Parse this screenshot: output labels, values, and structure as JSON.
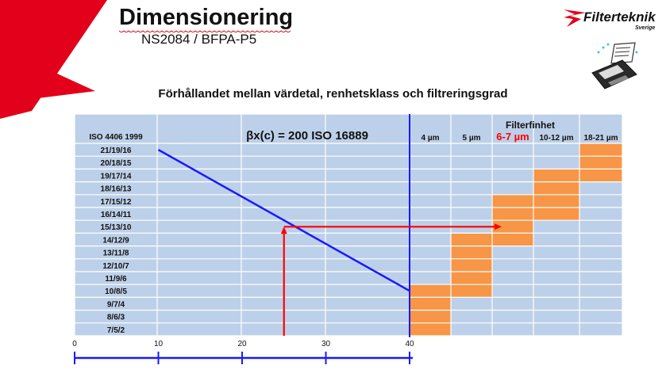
{
  "title": "Dimensionering",
  "subtitle": "NS2084 / BFPA-P5",
  "logo": {
    "text": "Filterteknik",
    "subtext": "Sverige"
  },
  "icon": "calculator-printer-icon",
  "colors": {
    "grid_fill": "#bdd0e9",
    "orange": "#f79646",
    "blue_line": "#1a1aff",
    "red": "#ff0000",
    "brand_red": "#e2001a"
  },
  "chart_data": {
    "type": "table",
    "title": "Förhållandet mellan värdetal, renhetsklass och filtreringsgrad",
    "row_header": "ISO 4406 1999",
    "codes": [
      "21/19/16",
      "20/18/15",
      "19/17/14",
      "18/16/13",
      "17/15/12",
      "16/14/11",
      "15/13/10",
      "14/12/9",
      "13/11/8",
      "12/10/7",
      "11/9/6",
      "10/8/5",
      "9/7/4",
      "8/6/3",
      "7/5/2"
    ],
    "beta_label": "βx(c) = 200   ISO 16889",
    "filter_header": "Filterfinhet",
    "filter_columns": [
      {
        "label": "4 µm",
        "rows": [
          11,
          14
        ],
        "highlight": false
      },
      {
        "label": "5 µm",
        "rows": [
          7,
          11
        ],
        "highlight": false
      },
      {
        "label": "6-7 µm",
        "rows": [
          4,
          7
        ],
        "highlight": true
      },
      {
        "label": "10-12 µm",
        "rows": [
          2,
          5
        ],
        "highlight": false
      },
      {
        "label": "18-21 µm",
        "rows": [
          0,
          2
        ],
        "highlight": false
      }
    ],
    "x_ticks": [
      0,
      10,
      20,
      30,
      40
    ],
    "xlim": [
      0,
      40
    ],
    "beta_line": {
      "x": [
        10,
        40
      ],
      "code": [
        "21/19/16",
        "10/8/5"
      ]
    },
    "example": {
      "x": 25,
      "code": "15/13/10",
      "filter": "6-7 µm"
    }
  }
}
